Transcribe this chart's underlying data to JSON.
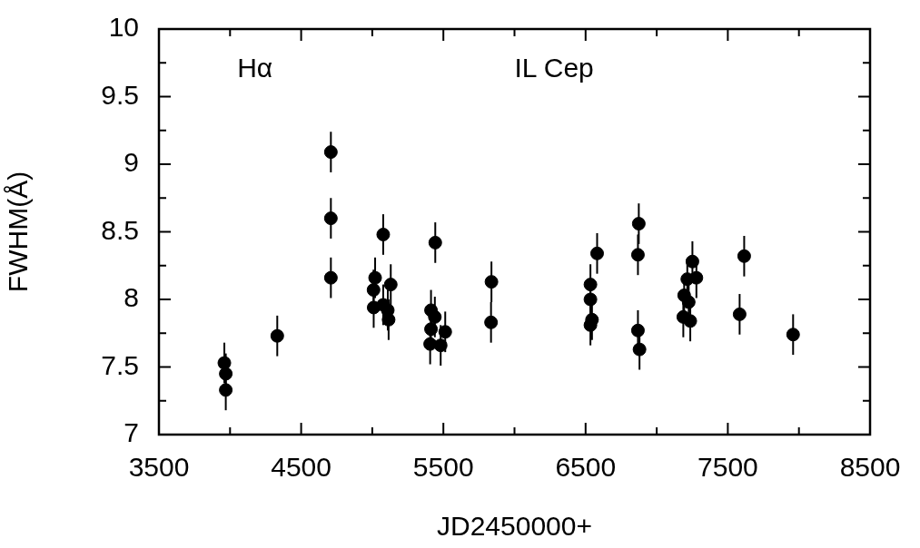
{
  "chart_data": {
    "type": "scatter",
    "xlabel": "JD2450000+",
    "ylabel": "FWHM(Å)",
    "annotations": [
      "Hα",
      "IL Cep"
    ],
    "x": [
      3960,
      3970,
      3970,
      4332,
      4709,
      4709,
      4709,
      5077,
      5020,
      5009,
      5010,
      5077,
      5130,
      5109,
      5115,
      5443,
      5413,
      5440,
      5413,
      5407,
      5481,
      5513,
      5838,
      5835,
      6534,
      6534,
      6545,
      6534,
      6581,
      6874,
      6868,
      6868,
      6879,
      7251,
      7215,
      7279,
      7193,
      7225,
      7187,
      7236,
      7615,
      7583,
      7959
    ],
    "values": [
      7.53,
      7.45,
      7.33,
      7.73,
      9.09,
      8.6,
      8.16,
      8.48,
      8.16,
      8.07,
      7.94,
      7.96,
      8.11,
      7.92,
      7.85,
      8.42,
      7.92,
      7.87,
      7.78,
      7.67,
      7.66,
      7.76,
      8.13,
      7.83,
      8.11,
      8.0,
      7.85,
      7.81,
      8.34,
      8.56,
      8.33,
      7.77,
      7.63,
      8.28,
      8.15,
      8.16,
      8.03,
      7.98,
      7.87,
      7.84,
      8.32,
      7.89,
      7.74
    ],
    "errors": [
      0.15,
      0.15,
      0.15,
      0.15,
      0.15,
      0.15,
      0.15,
      0.15,
      0.15,
      0.15,
      0.15,
      0.15,
      0.15,
      0.15,
      0.15,
      0.15,
      0.15,
      0.15,
      0.15,
      0.15,
      0.15,
      0.15,
      0.15,
      0.15,
      0.15,
      0.15,
      0.15,
      0.15,
      0.15,
      0.15,
      0.15,
      0.15,
      0.15,
      0.15,
      0.15,
      0.15,
      0.15,
      0.15,
      0.15,
      0.15,
      0.15,
      0.15,
      0.15
    ],
    "color": "#000000",
    "marker": "circle",
    "xlim": [
      3500,
      8500
    ],
    "xticks": [
      3500,
      {
        "value": 4000,
        "label": null
      },
      4500,
      {
        "value": 5000,
        "label": null
      },
      5500,
      {
        "value": 6000,
        "label": null
      },
      6500,
      {
        "value": 7000,
        "label": null
      },
      7500,
      {
        "value": 8000,
        "label": null
      },
      8500
    ],
    "ylim": [
      7,
      10
    ],
    "yticks": [
      7,
      {
        "value": 7.25,
        "label": null
      },
      7.5,
      {
        "value": 7.75,
        "label": null
      },
      8,
      {
        "value": 8.25,
        "label": null
      },
      8.5,
      {
        "value": 8.75,
        "label": null
      },
      9,
      {
        "value": 9.25,
        "label": null
      },
      9.5,
      {
        "value": 9.75,
        "label": null
      },
      10
    ]
  }
}
